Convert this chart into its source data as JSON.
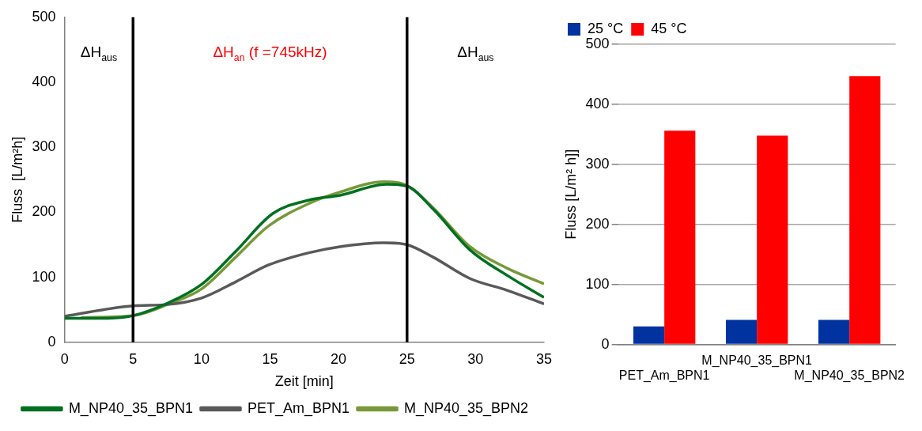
{
  "chart_data": [
    {
      "type": "line",
      "xlabel": "Zeit [min]",
      "ylabel": "Fluss  [L/m²h]",
      "xlim": [
        0,
        35
      ],
      "xticks": [
        0,
        5,
        10,
        15,
        20,
        25,
        30,
        35
      ],
      "ylim": [
        0,
        500
      ],
      "yticks": [
        0,
        100,
        200,
        300,
        400,
        500
      ],
      "grid": false,
      "legend": "bottom",
      "marker": "none",
      "line_style": "solid",
      "ref_lines": [
        {
          "axis": "x",
          "value": 5,
          "color": "#000000"
        },
        {
          "axis": "x",
          "value": 25,
          "color": "#000000"
        }
      ],
      "annotations": [
        "ΔH$_{aus}$",
        "ΔH$_{an}$ (f =745kHz)",
        "ΔH$_{aus}$"
      ],
      "series": [
        {
          "name": "M_NP40_35_BPN1",
          "color": "#007020",
          "x": [
            0,
            3.2,
            5,
            7.5,
            10,
            12.5,
            15.2,
            17.9,
            20.1,
            23.5,
            25,
            26.9,
            29.6,
            32.3,
            35
          ],
          "values": [
            37,
            37,
            41,
            60,
            89,
            140,
            198,
            219,
            226,
            243,
            240,
            205,
            142,
            103,
            69
          ]
        },
        {
          "name": "PET_Am_BPN1",
          "color": "#595959",
          "x": [
            0,
            5,
            7.5,
            10,
            12.5,
            14.9,
            17.9,
            20.1,
            23.3,
            25,
            26.9,
            29.6,
            32.3,
            35
          ],
          "values": [
            40,
            56,
            58,
            68,
            93,
            119,
            138,
            147,
            153,
            150,
            131,
            98,
            80,
            59
          ]
        },
        {
          "name": "M_NP40_35_BPN2",
          "color": "#77993a",
          "x": [
            1.2,
            5,
            7.5,
            10,
            12.5,
            14.9,
            17.9,
            20.1,
            23.3,
            25,
            26.9,
            29.6,
            32.3,
            35
          ],
          "values": [
            38,
            41,
            58,
            82,
            131,
            179,
            214,
            231,
            247,
            241,
            207,
            147,
            114,
            90
          ]
        }
      ]
    },
    {
      "type": "bar",
      "ylabel": "Fluss [L/m² h]]",
      "categories": [
        "PET_Am_BPN1",
        "M_NP40_35_BPN1",
        "M_NP40_35_BPN2"
      ],
      "ylim": [
        0,
        500
      ],
      "yticks": [
        0,
        100,
        200,
        300,
        400,
        500
      ],
      "grid": "y",
      "legend": "top left",
      "series": [
        {
          "name": "25 °C",
          "color": "#0033a0",
          "values": [
            30,
            41,
            41
          ]
        },
        {
          "name": "45 °C",
          "color": "#ff0000",
          "values": [
            356,
            348,
            447
          ]
        }
      ]
    }
  ]
}
